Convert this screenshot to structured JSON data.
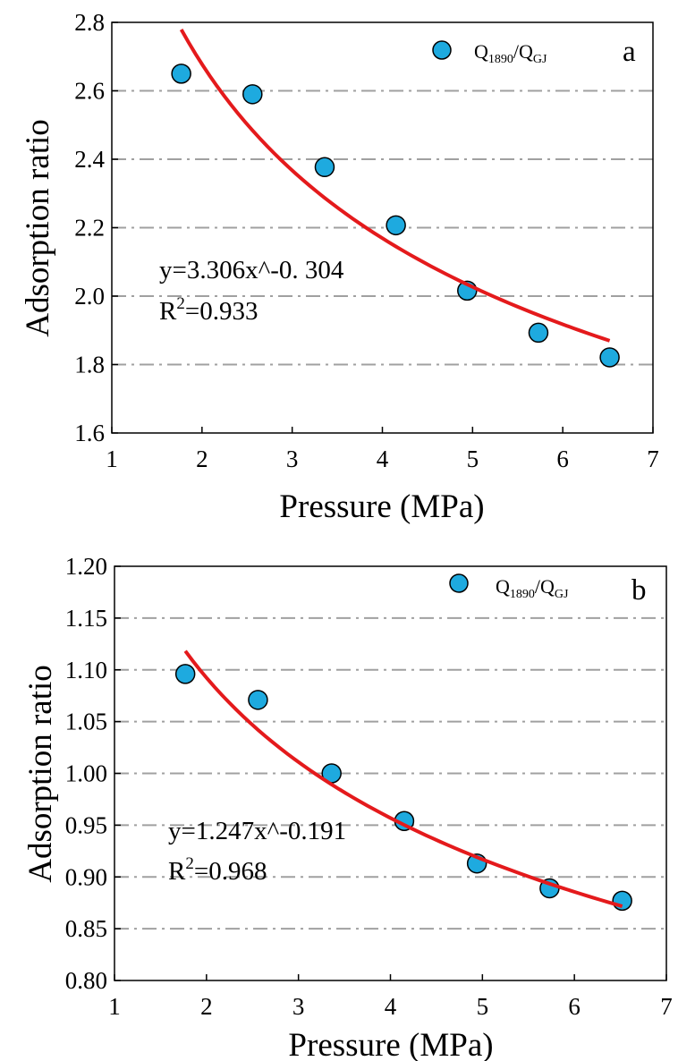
{
  "colors": {
    "marker": "#1eaadf",
    "fit": "#e41a1c",
    "grid": "#a0a0a0"
  },
  "chart_data": [
    {
      "type": "scatter",
      "panel": "a",
      "xlabel": "Pressure (MPa)",
      "ylabel": "Adsorption ratio",
      "xlim": [
        1,
        7
      ],
      "ylim": [
        1.6,
        2.8
      ],
      "xticks": [
        "1",
        "2",
        "3",
        "4",
        "5",
        "6",
        "7"
      ],
      "yticks": [
        "1.6",
        "1.8",
        "2.0",
        "2.2",
        "2.4",
        "2.6",
        "2.8"
      ],
      "grid_y": [
        1.8,
        2.0,
        2.2,
        2.4,
        2.6
      ],
      "legend": {
        "Q": "Q",
        "sub1": "1890",
        "sep": "/Q",
        "sub2": "GJ"
      },
      "series": [
        {
          "name": "Q1890/QGJ",
          "x": [
            1.77,
            2.56,
            3.36,
            4.15,
            4.94,
            5.73,
            6.52
          ],
          "y": [
            2.65,
            2.59,
            2.377,
            2.207,
            2.016,
            1.893,
            1.821
          ]
        }
      ],
      "fit": {
        "a": 3.306,
        "b": -0.304,
        "x_range": [
          1.77,
          6.52
        ]
      },
      "equation": "y=3.306x^-0. 304",
      "r2_prefix": "R",
      "r2_sup": "2",
      "r2_value": "=0.933"
    },
    {
      "type": "scatter",
      "panel": "b",
      "xlabel": "Pressure (MPa)",
      "ylabel": "Adsorption ratio",
      "xlim": [
        1,
        7
      ],
      "ylim": [
        0.8,
        1.2
      ],
      "xticks": [
        "1",
        "2",
        "3",
        "4",
        "5",
        "6",
        "7"
      ],
      "yticks": [
        "0.80",
        "0.85",
        "0.90",
        "0.95",
        "1.00",
        "1.05",
        "1.10",
        "1.15",
        "1.20"
      ],
      "grid_y": [
        0.85,
        0.9,
        0.95,
        1.0,
        1.05,
        1.1,
        1.15
      ],
      "legend": {
        "Q": "Q",
        "sub1": "1890",
        "sep": "/Q",
        "sub2": "GJ"
      },
      "series": [
        {
          "name": "Q1890/QGJ",
          "x": [
            1.77,
            2.56,
            3.36,
            4.15,
            4.94,
            5.73,
            6.52
          ],
          "y": [
            1.096,
            1.071,
            1.0,
            0.954,
            0.913,
            0.889,
            0.877
          ]
        }
      ],
      "fit": {
        "a": 1.247,
        "b": -0.191,
        "x_range": [
          1.77,
          6.52
        ]
      },
      "equation": "y=1.247x^-0.191",
      "r2_prefix": "R",
      "r2_sup": "2",
      "r2_value": "=0.968"
    }
  ]
}
